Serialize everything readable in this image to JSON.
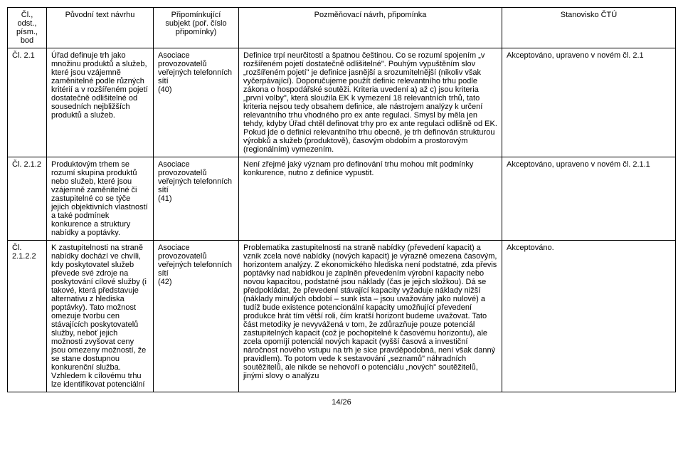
{
  "table": {
    "headers": {
      "ref": "Čl., odst., písm., bod",
      "orig": "Původní text návrhu",
      "subj": "Připomínkující subjekt (poř. číslo připomínky)",
      "comment": "Pozměňovací návrh, připomínka",
      "pos": "Stanovisko ČTÚ"
    },
    "rows": [
      {
        "ref": "Čl. 2.1",
        "orig": "Úřad definuje trh jako množinu produktů a služeb, které jsou vzájemně zaměnitelné podle různých kritérií a v rozšířeném pojetí dostatečně odlišitelné od sousedních nejbližších produktů a služeb.",
        "subj": "Asociace provozovatelů veřejných telefonních sítí\n(40)",
        "comment": "Definice trpí neurčitostí a špatnou češtinou. Co se rozumí spojením „v rozšířeném pojetí dostatečně odlišitelné\". Pouhým vypuštěním slov „rozšířeném pojetí\" je definice jasnější a srozumitelnější (nikoliv však vyčerpávající). Doporučujeme použít definic relevantního trhu podle zákona o hospodářské soutěži. Kriteria uvedení a) až c) jsou kriteria „první volby\", která sloužila EK k vymezení 18 relevantních trhů, tato kriteria nejsou tedy obsahem definice, ale nástrojem analýzy k určení relevantního trhu vhodného pro ex ante regulaci. Smysl by měla jen tehdy, kdyby Úřad chtěl definovat trhy pro ex ante regulaci odlišně od EK. Pokud jde o definici relevantního trhu obecně, je trh definován strukturou výrobků a služeb (produktově), časovým obdobím a prostorovým (regionálním) vymezením.",
        "pos": "Akceptováno, upraveno v novém čl. 2.1"
      },
      {
        "ref": "Čl. 2.1.2",
        "orig": "Produktovým trhem se rozumí skupina produktů nebo služeb, které jsou vzájemně zaměnitelné či zastupitelné co se týče jejich objektivních vlastností a také podmínek konkurence a struktury nabídky a poptávky.",
        "subj": "Asociace provozovatelů veřejných telefonních sítí\n(41)",
        "comment": "Není zřejmé jaký význam pro definování trhu mohou mít podmínky konkurence, nutno z definice vypustit.",
        "pos": "Akceptováno, upraveno v novém čl. 2.1.1"
      },
      {
        "ref": "Čl. 2.1.2.2",
        "orig": "K zastupitelnosti na straně nabídky dochází ve chvíli, kdy poskytovatel služeb převede své zdroje na poskytování cílové služby (i takové, která představuje alternativu z hlediska poptávky). Tato možnost omezuje tvorbu cen stávajících poskytovatelů služby, neboť jejich možnosti zvyšovat ceny jsou omezeny možností, že se stane dostupnou konkurenční služba. Vzhledem k cílovému trhu lze identifikovat potenciální",
        "subj": "Asociace provozovatelů veřejných telefonních sítí\n(42)",
        "comment": "Problematika zastupitelnosti na straně nabídky (převedení kapacit) a vznik zcela nové nabídky (nových kapacit) je výrazně omezena časovým, horizontem analýzy. Z ekonomického hlediska není podstatné, zda převis poptávky nad nabídkou je zaplněn převedením výrobní kapacity nebo novou kapacitou, podstatné jsou náklady (čas je jejich složkou). Dá se předpokládat, že převedení stávající kapacity vyžaduje náklady nižší (náklady minulých období – sunk    ista – jsou uvažovány jako nulové) a tudíž bude existence potencionální kapacity umožňující převedení produkce hrát tím větší roli, čím kratší horizont budeme uvažovat. Tato část metodiky je nevyvážená v tom, že zdůrazňuje pouze potenciál zastupitelných kapacit (což je pochopitelné k časovému horizontu), ale zcela opomíjí potenciál nových kapacit (vyšší časová a investiční náročnost nového vstupu na trh je sice pravděpodobná, není však danný pravidlem). To potom vede k sestavování „seznamů\" náhradních soutěžitelů, ale nikde se nehovoří o potenciálu „nových\" soutěžitelů, jinými slovy o analýzu",
        "pos": "Akceptováno."
      }
    ]
  },
  "page_number": "14/26"
}
